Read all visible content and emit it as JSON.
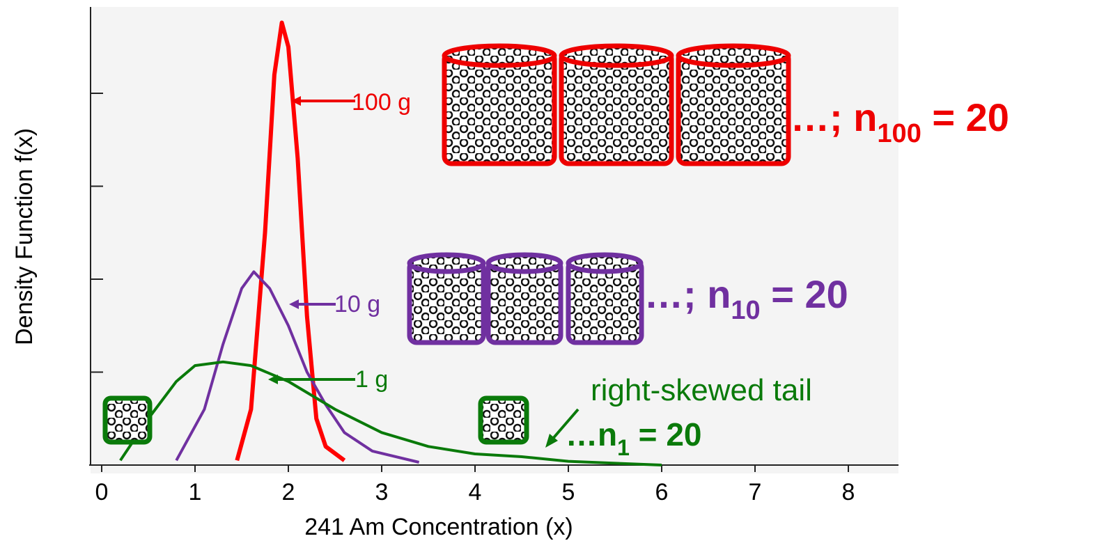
{
  "chart_data": {
    "type": "line",
    "x_label": "241 Am Concentration (x)",
    "y_label": "Density Function f(x)",
    "xlim": [
      0,
      8.5
    ],
    "xticks": [
      0,
      1,
      2,
      3,
      4,
      5,
      6,
      7,
      8
    ],
    "ylim": [
      0,
      5
    ],
    "yticks": [
      1,
      2,
      3,
      4
    ],
    "series": [
      {
        "name": "100 g",
        "color": "#ff0000",
        "x": [
          1.45,
          1.6,
          1.75,
          1.85,
          1.93,
          2.0,
          2.1,
          2.2,
          2.3,
          2.4,
          2.6
        ],
        "values": [
          0.05,
          0.6,
          2.5,
          4.2,
          4.76,
          4.5,
          3.3,
          1.6,
          0.5,
          0.2,
          0.05
        ]
      },
      {
        "name": "10 g",
        "color": "#7030a0",
        "x": [
          0.8,
          1.1,
          1.3,
          1.5,
          1.63,
          1.8,
          2.0,
          2.2,
          2.4,
          2.6,
          2.9,
          3.4
        ],
        "values": [
          0.05,
          0.6,
          1.3,
          1.9,
          2.08,
          1.9,
          1.5,
          1.0,
          0.65,
          0.35,
          0.15,
          0.03
        ]
      },
      {
        "name": "1 g",
        "color": "#0a7a0a",
        "x": [
          0.2,
          0.5,
          0.8,
          1.0,
          1.3,
          1.6,
          2.0,
          2.5,
          3.0,
          3.5,
          4.0,
          4.5,
          5.0,
          6.0
        ],
        "values": [
          0.05,
          0.5,
          0.9,
          1.07,
          1.11,
          1.07,
          0.9,
          0.6,
          0.35,
          0.2,
          0.12,
          0.09,
          0.04,
          0.0
        ]
      }
    ],
    "annotations": {
      "tail": "right-skewed tail",
      "n100": {
        "prefix": "…; n",
        "sub": "100",
        "suffix": " = 20"
      },
      "n10": {
        "prefix": "…; n",
        "sub": "10",
        "suffix": " = 20"
      },
      "n1": {
        "prefix": "…n",
        "sub": "1",
        "suffix": " = 20"
      }
    }
  }
}
